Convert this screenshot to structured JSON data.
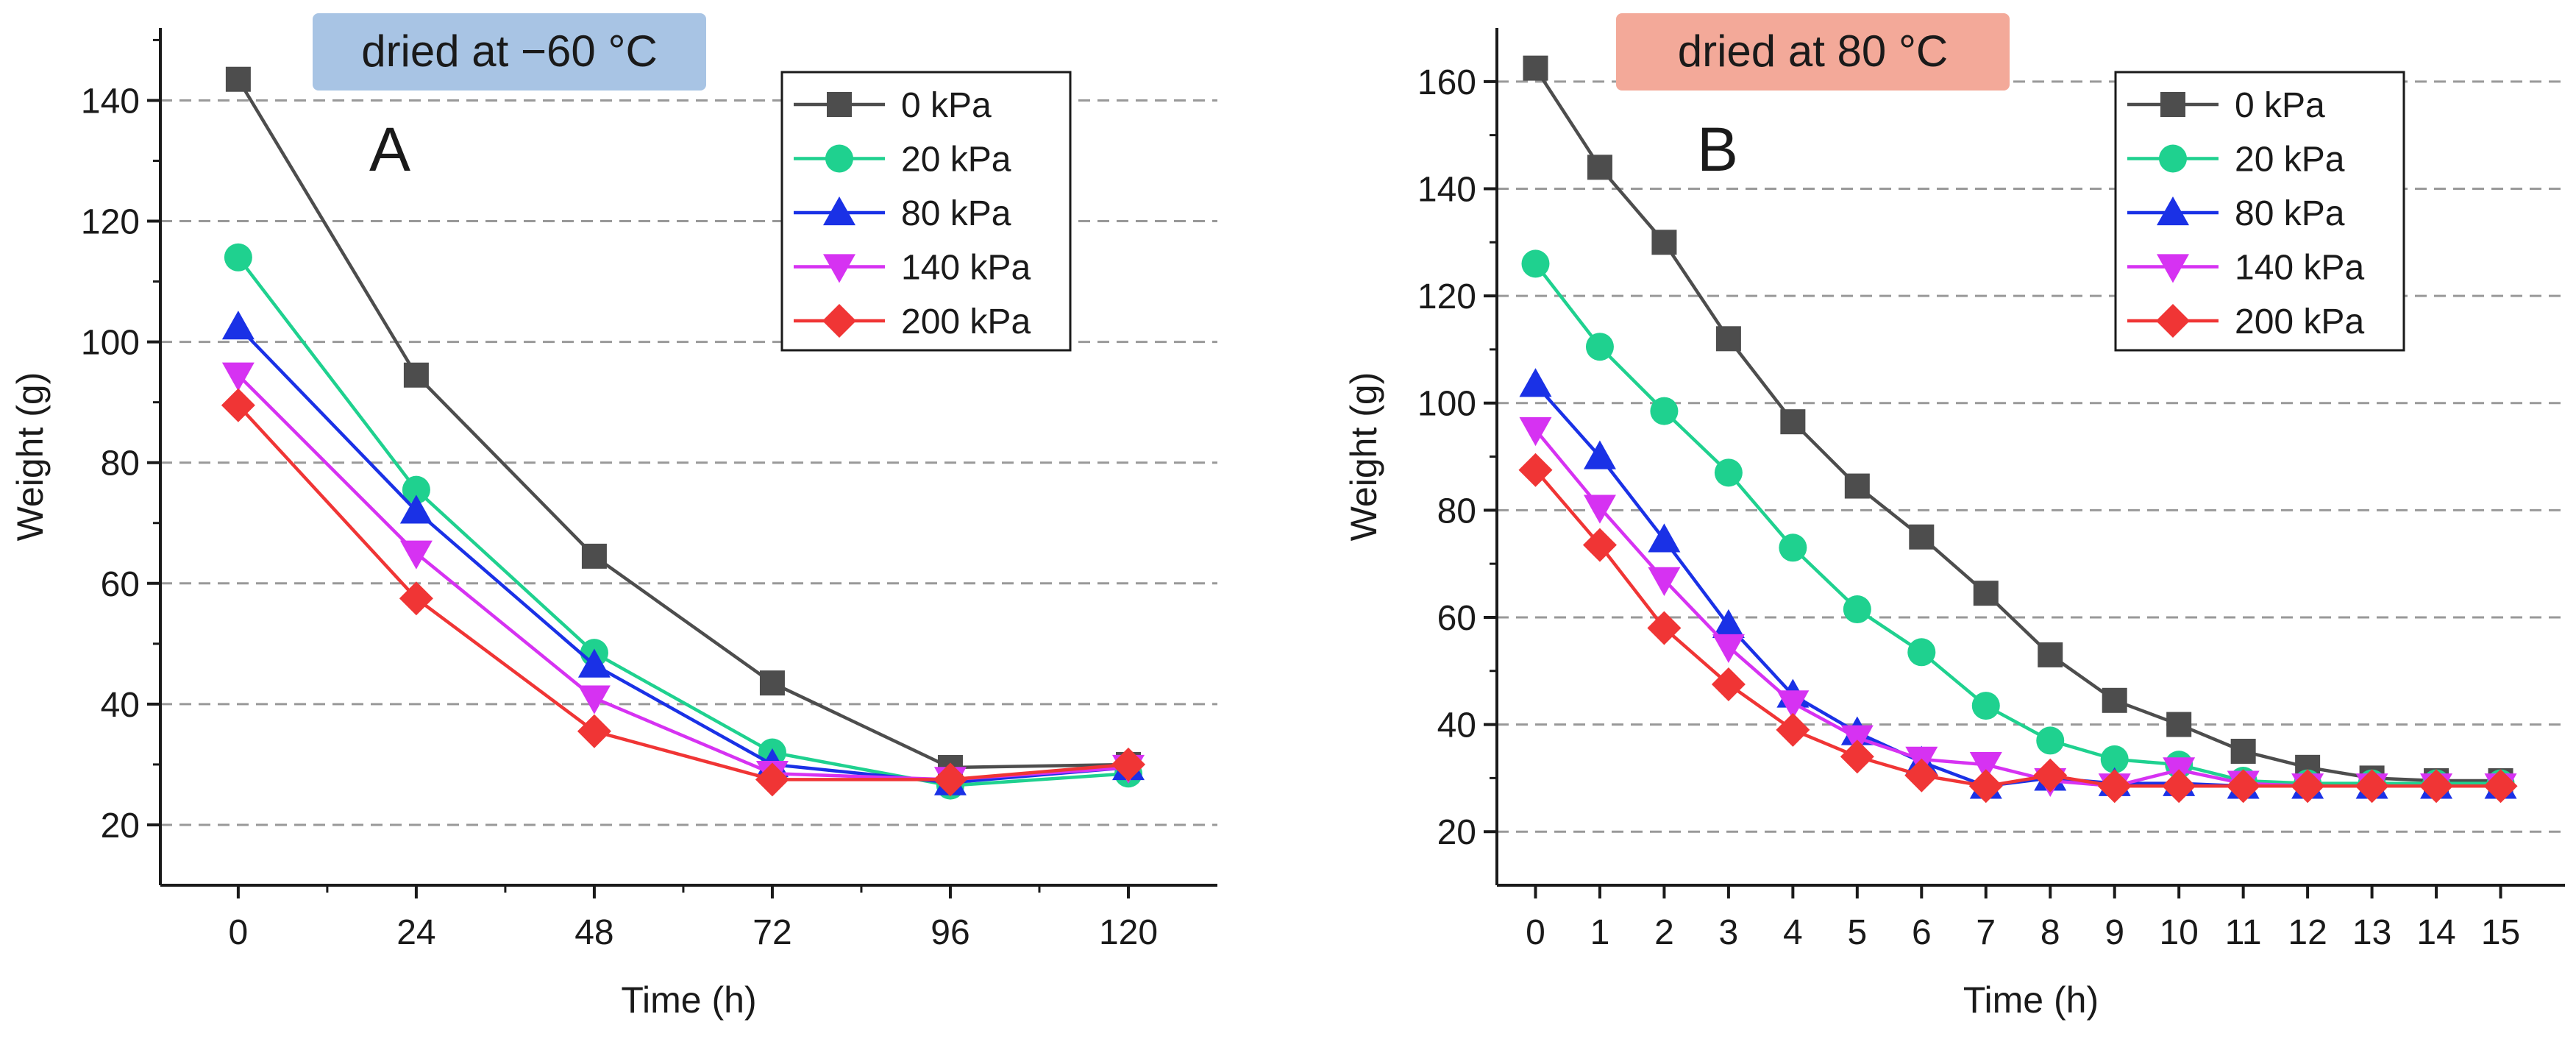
{
  "colors": {
    "0 kPa": "#4d4d4d",
    "20 kPa": "#1fd18f",
    "80 kPa": "#1a31e6",
    "140 kPa": "#d632f2",
    "200 kPa": "#f03535",
    "badgeA": "#a8c4e4",
    "badgeB": "#f3a999",
    "grid": "#999999",
    "axis": "#1a1a1a"
  },
  "chart_data": [
    {
      "type": "line",
      "panel_letter": "A",
      "badge": "dried at −60 °C",
      "xlabel": "Time (h)",
      "ylabel": "Weight (g)",
      "xlim": [
        -10.5,
        132
      ],
      "ylim": [
        10,
        152
      ],
      "xticks": [
        0,
        24,
        48,
        72,
        96,
        120
      ],
      "yticks": [
        20,
        40,
        60,
        80,
        100,
        120,
        140
      ],
      "grid": "horizontal dashed",
      "legend": "top-right",
      "x": [
        0,
        24,
        48,
        72,
        96,
        120
      ],
      "series": [
        {
          "name": "0 kPa",
          "marker": "square",
          "values": [
            143.5,
            94.5,
            64.5,
            43.5,
            29.5,
            30.0
          ]
        },
        {
          "name": "20 kPa",
          "marker": "circle",
          "values": [
            114.0,
            75.5,
            48.5,
            32.0,
            26.5,
            28.5
          ]
        },
        {
          "name": "80 kPa",
          "marker": "triangle-up",
          "values": [
            102.5,
            72.0,
            46.5,
            30.0,
            27.0,
            29.5
          ]
        },
        {
          "name": "140 kPa",
          "marker": "triangle-down",
          "values": [
            94.5,
            65.0,
            41.0,
            28.5,
            27.5,
            29.5
          ]
        },
        {
          "name": "200 kPa",
          "marker": "diamond",
          "values": [
            89.5,
            57.5,
            35.5,
            27.5,
            27.5,
            30.0
          ]
        }
      ]
    },
    {
      "type": "line",
      "panel_letter": "B",
      "badge": "dried at 80 °C",
      "xlabel": "Time (h)",
      "ylabel": "Weight (g)",
      "xlim": [
        -0.6,
        16.0
      ],
      "ylim": [
        10,
        170
      ],
      "xticks": [
        0,
        1,
        2,
        3,
        4,
        5,
        6,
        7,
        8,
        9,
        10,
        11,
        12,
        13,
        14,
        15
      ],
      "yticks": [
        20,
        40,
        60,
        80,
        100,
        120,
        140,
        160
      ],
      "grid": "horizontal dashed",
      "legend": "top-right",
      "x": [
        0,
        1,
        2,
        3,
        4,
        5,
        6,
        7,
        8,
        9,
        10,
        11,
        12,
        13,
        14,
        15
      ],
      "series": [
        {
          "name": "0 kPa",
          "marker": "square",
          "values": [
            162.5,
            144.0,
            130.0,
            112.0,
            96.5,
            84.5,
            75.0,
            64.5,
            53.0,
            44.5,
            40.0,
            35.0,
            32.0,
            30.0,
            29.5,
            29.5
          ]
        },
        {
          "name": "20 kPa",
          "marker": "circle",
          "values": [
            126.0,
            110.5,
            98.5,
            87.0,
            73.0,
            61.5,
            53.5,
            43.5,
            37.0,
            33.5,
            32.5,
            29.5,
            29.0,
            29.0,
            29.0,
            29.0
          ]
        },
        {
          "name": "80 kPa",
          "marker": "triangle-up",
          "values": [
            103.5,
            90.0,
            74.5,
            58.5,
            45.5,
            38.5,
            33.0,
            28.5,
            30.0,
            29.0,
            29.0,
            28.5,
            28.5,
            28.5,
            28.5,
            28.5
          ]
        },
        {
          "name": "140 kPa",
          "marker": "triangle-down",
          "values": [
            95.0,
            80.5,
            67.0,
            54.5,
            44.0,
            37.5,
            33.5,
            32.5,
            29.5,
            28.5,
            31.5,
            29.0,
            28.5,
            28.5,
            28.5,
            28.5
          ]
        },
        {
          "name": "200 kPa",
          "marker": "diamond",
          "values": [
            87.5,
            73.5,
            58.0,
            47.5,
            39.0,
            34.0,
            30.5,
            28.5,
            30.5,
            28.5,
            28.5,
            28.5,
            28.5,
            28.5,
            28.5,
            28.5
          ]
        }
      ]
    }
  ]
}
